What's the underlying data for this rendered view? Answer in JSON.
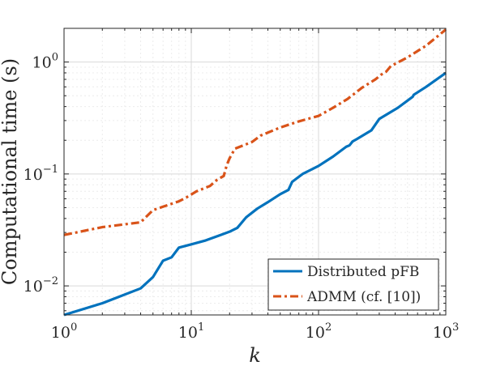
{
  "chart_data": {
    "type": "line",
    "title": "",
    "xlabel": "k",
    "ylabel": "Computational time (s)",
    "xscale": "log",
    "yscale": "log",
    "xlim": [
      1,
      1000
    ],
    "ylim": [
      0.0055,
      2.0
    ],
    "grid": true,
    "legend_position": "bottom-right",
    "x_ticks": [
      {
        "value": 1,
        "base": "10",
        "exp": "0"
      },
      {
        "value": 10,
        "base": "10",
        "exp": "1"
      },
      {
        "value": 100,
        "base": "10",
        "exp": "2"
      },
      {
        "value": 1000,
        "base": "10",
        "exp": "3"
      }
    ],
    "y_ticks": [
      {
        "value": 0.01,
        "base": "10",
        "exp": "−2"
      },
      {
        "value": 0.1,
        "base": "10",
        "exp": "−1"
      },
      {
        "value": 1,
        "base": "10",
        "exp": "0"
      }
    ],
    "series": [
      {
        "name": "Distributed pFB",
        "color": "#0072BD",
        "style": "solid",
        "x": [
          1,
          2,
          4,
          5,
          6,
          7,
          8,
          10,
          13,
          17,
          20,
          23,
          27,
          33,
          40,
          50,
          58,
          62,
          68,
          75,
          100,
          130,
          165,
          175,
          185,
          200,
          260,
          300,
          420,
          550,
          560,
          700,
          1000
        ],
        "y": [
          0.0055,
          0.007,
          0.0095,
          0.012,
          0.0168,
          0.018,
          0.022,
          0.0235,
          0.0255,
          0.0285,
          0.0305,
          0.033,
          0.041,
          0.049,
          0.056,
          0.066,
          0.072,
          0.085,
          0.092,
          0.1,
          0.118,
          0.143,
          0.175,
          0.18,
          0.195,
          0.205,
          0.245,
          0.31,
          0.39,
          0.49,
          0.51,
          0.6,
          0.8
        ]
      },
      {
        "name": "ADMM (cf. [10])",
        "color": "#D95319",
        "style": "dashdot",
        "x": [
          1,
          2,
          4,
          5,
          6,
          8,
          9,
          11,
          14,
          16,
          18,
          19,
          20,
          22,
          25,
          30,
          35,
          50,
          70,
          100,
          130,
          170,
          220,
          280,
          310,
          340,
          370,
          500,
          700,
          1000
        ],
        "y": [
          0.0285,
          0.0335,
          0.037,
          0.0475,
          0.051,
          0.057,
          0.061,
          0.07,
          0.078,
          0.089,
          0.096,
          0.12,
          0.138,
          0.168,
          0.178,
          0.193,
          0.22,
          0.26,
          0.295,
          0.33,
          0.39,
          0.47,
          0.59,
          0.7,
          0.77,
          0.82,
          0.92,
          1.1,
          1.4,
          1.95
        ]
      }
    ]
  }
}
